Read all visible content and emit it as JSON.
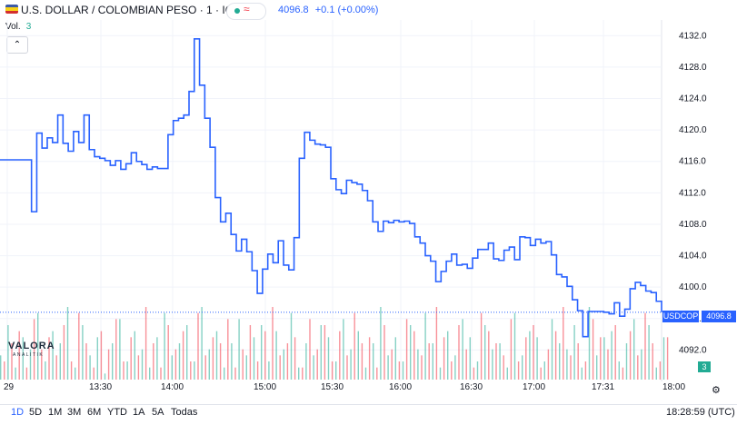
{
  "header": {
    "title": "U.S. DOLLAR / COLOMBIAN PESO · 1 · ICE",
    "wave_icon": "≈",
    "price": "4096.8",
    "change": "+0.1 (+0.00%)"
  },
  "volume": {
    "label": "Vol.",
    "value": "3"
  },
  "collapse_icon": "chevron-up-icon",
  "symbol_badge": {
    "symbol": "USDCOP",
    "price": "4096.8"
  },
  "volume_badge": "3",
  "logo": {
    "name": "VALORA",
    "sub": "ANALITIK"
  },
  "time_axis": [
    "29",
    "13:30",
    "14:00",
    "15:00",
    "15:30",
    "16:00",
    "16:30",
    "17:00",
    "17:31",
    "18:00"
  ],
  "ranges": [
    "1D",
    "5D",
    "1M",
    "3M",
    "6M",
    "YTD",
    "1A",
    "5A",
    "Todas"
  ],
  "clock": "18:28:59 (UTC)",
  "colors": {
    "line": "#2962ff",
    "up": "#22ab94",
    "down": "#f23645",
    "badge": "#2962ff"
  },
  "chart_data": {
    "type": "line",
    "title": "U.S. DOLLAR / COLOMBIAN PESO · 1 · ICE",
    "xlabel": "",
    "ylabel": "",
    "ylim": [
      4088,
      4134
    ],
    "y_ticks": [
      "4132.0",
      "4128.0",
      "4124.0",
      "4120.0",
      "4116.0",
      "4112.0",
      "4108.0",
      "4104.0",
      "4100.0",
      "4096.0",
      "4092.0"
    ],
    "series": [
      {
        "values": [
          4116.2,
          4116.2,
          4116.2,
          4116.2,
          4116.2,
          4116.2,
          4109.6,
          4119.6,
          4117.7,
          4119.0,
          4118.4,
          4121.9,
          4118.3,
          4117.3,
          4119.8,
          4118.4,
          4121.9,
          4117.5,
          4116.6,
          4116.4,
          4116.1,
          4115.5,
          4116.1,
          4115.0,
          4115.7,
          4117.1,
          4116.0,
          4115.6,
          4115.0,
          4115.3,
          4115.1,
          4115.1,
          4119.4,
          4121.2,
          4121.5,
          4121.9,
          4124.9,
          4131.6,
          4125.7,
          4121.5,
          4117.8,
          4111.4,
          4108.3,
          4109.4,
          4106.7,
          4104.6,
          4106.1,
          4104.5,
          4102.1,
          4099.2,
          4102.3,
          4104.2,
          4103.1,
          4105.9,
          4102.8,
          4102.2,
          4106.3,
          4116.4,
          4119.7,
          4118.7,
          4118.2,
          4118.1,
          4117.8,
          4113.8,
          4112.4,
          4111.9,
          4113.6,
          4113.3,
          4113.1,
          4112.3,
          4111.0,
          4108.3,
          4107.1,
          4108.4,
          4108.2,
          4108.5,
          4108.3,
          4108.4,
          4108.1,
          4106.4,
          4105.6,
          4104.0,
          4103.3,
          4100.7,
          4102.0,
          4103.3,
          4104.2,
          4102.8,
          4102.9,
          4102.4,
          4103.7,
          4104.8,
          4104.8,
          4105.6,
          4103.6,
          4103.4,
          4104.7,
          4105.1,
          4103.5,
          4106.4,
          4106.3,
          4105.3,
          4106.1,
          4105.6,
          4105.8,
          4104.1,
          4101.6,
          4101.3,
          4100.1,
          4098.4,
          4097.0,
          4093.7,
          4096.9,
          4096.9,
          4096.9,
          4096.8,
          4096.6,
          4098.0,
          4096.3,
          4097.2,
          4099.8,
          4100.6,
          4100.2,
          4099.5,
          4099.3,
          4098.2,
          4096.8
        ]
      },
      {
        "name": "Vol.",
        "up": [
          4,
          9,
          2,
          7,
          5,
          11,
          3,
          8,
          6,
          12,
          2,
          9,
          4,
          7,
          1,
          6,
          10,
          3,
          8,
          5,
          2,
          7,
          11,
          4,
          6,
          9,
          3,
          12,
          5,
          8,
          2,
          6,
          10,
          4,
          7,
          9,
          3,
          8,
          5,
          11,
          2,
          6,
          4,
          9,
          7,
          3,
          10,
          5,
          8,
          2,
          6,
          12,
          4,
          7,
          3,
          9,
          5,
          11,
          6,
          2,
          8,
          4,
          10,
          7,
          3,
          9,
          5,
          6,
          2,
          11,
          4,
          8,
          7,
          3,
          10,
          6,
          5,
          9,
          2,
          12,
          4,
          7,
          8,
          3,
          6,
          10,
          5,
          9,
          2,
          7
        ],
        "down": [
          3,
          6,
          8,
          2,
          10,
          5,
          7,
          4,
          9,
          3,
          11,
          6,
          2,
          8,
          5,
          10,
          3,
          7,
          4,
          12,
          6,
          2,
          9,
          5,
          8,
          3,
          11,
          4,
          7,
          6,
          10,
          2,
          5,
          9,
          3,
          8,
          12,
          4,
          6,
          7,
          2,
          10,
          5,
          9,
          3,
          8,
          4,
          11,
          6,
          7,
          2,
          9,
          5,
          3,
          10,
          8,
          4,
          6,
          12,
          7,
          3,
          9,
          5,
          2,
          11,
          8,
          6,
          4,
          10,
          3,
          7,
          9,
          2,
          5,
          8,
          12,
          4,
          6,
          3,
          10,
          7,
          5,
          9,
          2,
          8,
          4,
          11,
          6,
          3,
          7
        ]
      }
    ]
  }
}
